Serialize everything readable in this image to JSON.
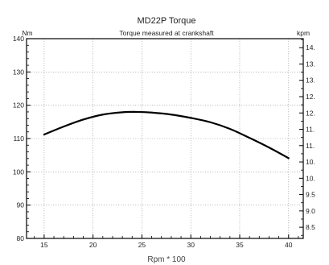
{
  "chart_data": {
    "type": "line",
    "title": "MD22P Torque",
    "subtitle": "Torque measured at crankshaft",
    "xlabel": "Rpm * 100",
    "ylabel_left": "Nm",
    "ylabel_right": "kpm",
    "xlim": [
      13.2,
      41.5
    ],
    "ylim": [
      80,
      140
    ],
    "x_ticks": [
      15,
      20,
      25,
      30,
      35,
      40
    ],
    "y_ticks": [
      80,
      90,
      100,
      110,
      120,
      130,
      140
    ],
    "right_ticks": [
      {
        "label": "8.5",
        "value": 8.5
      },
      {
        "label": "9.0",
        "value": 9.0
      },
      {
        "label": "9.5",
        "value": 9.5
      },
      {
        "label": "10.",
        "value": 10.0
      },
      {
        "label": "10.",
        "value": 10.5
      },
      {
        "label": "11.",
        "value": 11.0
      },
      {
        "label": "11.",
        "value": 11.5
      },
      {
        "label": "12.",
        "value": 12.0
      },
      {
        "label": "12.",
        "value": 12.5
      },
      {
        "label": "13.",
        "value": 13.0
      },
      {
        "label": "13.",
        "value": 13.5
      },
      {
        "label": "14.",
        "value": 14.0
      }
    ],
    "right_scale_nm_per_kpm": 9.80665,
    "grid": true,
    "series": [
      {
        "name": "",
        "x": [
          15,
          17,
          19,
          21,
          23,
          24.5,
          26,
          28,
          30,
          32,
          34,
          36,
          38,
          40
        ],
        "y": [
          111.2,
          113.6,
          115.7,
          117.2,
          117.9,
          118.0,
          117.8,
          117.2,
          116.2,
          114.9,
          112.9,
          110.2,
          107.3,
          104.1
        ]
      }
    ]
  }
}
